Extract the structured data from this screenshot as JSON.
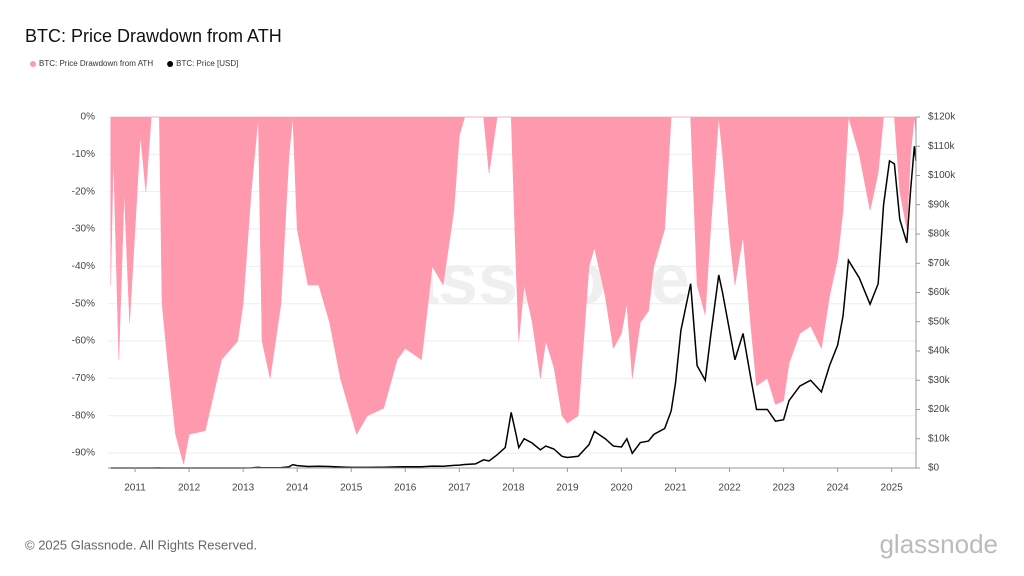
{
  "chart_data": {
    "type": "area-line",
    "title": "BTC: Price Drawdown from ATH",
    "series": [
      {
        "name": "BTC: Price Drawdown from ATH",
        "color": "#ff9aae",
        "type": "area",
        "axis": "y",
        "values": [
          -45,
          -10,
          -65,
          -20,
          -55,
          -30,
          -5,
          -20,
          0,
          0,
          -50,
          -65,
          -85,
          -93,
          -85,
          -84,
          -65,
          -60,
          -50,
          -20,
          0,
          -60,
          -70,
          -50,
          -10,
          0,
          -30,
          -45,
          -45,
          -55,
          -70,
          -80,
          -85,
          -80,
          -78,
          -65,
          -62,
          -65,
          -40,
          -45,
          -25,
          -5,
          0,
          0,
          0,
          -15,
          0,
          0,
          0,
          -40,
          -60,
          -45,
          -55,
          -70,
          -60,
          -67,
          -80,
          -82,
          -80,
          -40,
          -35,
          -48,
          -62,
          -58,
          -50,
          -70,
          -55,
          -52,
          -40,
          -30,
          0,
          0,
          0,
          0,
          -45,
          -53,
          -30,
          0,
          -10,
          -32,
          -45,
          -32,
          -57,
          -72,
          -70,
          -77,
          -76,
          -66,
          -58,
          -56,
          -62,
          -48,
          -38,
          -25,
          0,
          -10,
          -25,
          -15,
          0,
          0,
          0,
          -20,
          -30,
          -10,
          0,
          -5
        ]
      },
      {
        "name": "BTC: Price [USD]",
        "color": "#000000",
        "type": "line",
        "axis": "y2",
        "values": [
          0.06,
          0.07,
          0.1,
          0.2,
          0.3,
          0.3,
          1,
          0.8,
          8,
          30,
          15,
          10,
          3,
          2.5,
          6,
          5,
          10,
          13,
          14,
          30,
          230,
          100,
          70,
          120,
          400,
          1150,
          800,
          500,
          600,
          500,
          350,
          220,
          200,
          230,
          250,
          400,
          430,
          420,
          650,
          610,
          900,
          1000,
          1200,
          1400,
          2800,
          2400,
          4500,
          7000,
          19000,
          11500,
          7000,
          10000,
          8500,
          6200,
          7500,
          6500,
          4000,
          3600,
          4000,
          8000,
          12500,
          10000,
          7500,
          7200,
          10000,
          5000,
          8700,
          9200,
          11500,
          13500,
          19500,
          29000,
          47000,
          63000,
          35000,
          30000,
          45000,
          66000,
          60000,
          47000,
          37000,
          46000,
          30000,
          20000,
          20000,
          16000,
          16500,
          23000,
          28000,
          30000,
          26000,
          35000,
          42000,
          52000,
          71000,
          65000,
          56000,
          63000,
          90000,
          105000,
          104000,
          85000,
          77000,
          95000,
          110000,
          105000
        ]
      }
    ],
    "x": [
      2010.55,
      2010.6,
      2010.7,
      2010.8,
      2010.9,
      2011.0,
      2011.1,
      2011.2,
      2011.3,
      2011.45,
      2011.5,
      2011.6,
      2011.75,
      2011.9,
      2012.0,
      2012.3,
      2012.6,
      2012.9,
      2013.0,
      2013.15,
      2013.28,
      2013.35,
      2013.5,
      2013.7,
      2013.85,
      2013.92,
      2014.0,
      2014.2,
      2014.4,
      2014.6,
      2014.8,
      2015.0,
      2015.1,
      2015.3,
      2015.6,
      2015.85,
      2016.0,
      2016.3,
      2016.5,
      2016.7,
      2016.9,
      2017.0,
      2017.1,
      2017.3,
      2017.45,
      2017.55,
      2017.7,
      2017.85,
      2017.96,
      2018.05,
      2018.1,
      2018.2,
      2018.35,
      2018.5,
      2018.6,
      2018.75,
      2018.9,
      2019.0,
      2019.2,
      2019.4,
      2019.5,
      2019.7,
      2019.85,
      2020.0,
      2020.1,
      2020.2,
      2020.35,
      2020.5,
      2020.6,
      2020.8,
      2020.92,
      2021.0,
      2021.1,
      2021.28,
      2021.4,
      2021.55,
      2021.65,
      2021.8,
      2021.87,
      2022.0,
      2022.1,
      2022.25,
      2022.4,
      2022.5,
      2022.7,
      2022.85,
      2023.0,
      2023.1,
      2023.3,
      2023.5,
      2023.7,
      2023.85,
      2024.0,
      2024.1,
      2024.2,
      2024.4,
      2024.6,
      2024.75,
      2024.85,
      2024.96,
      2025.05,
      2025.15,
      2025.28,
      2025.35,
      2025.42,
      2025.45
    ],
    "xlim": [
      2010.5,
      2025.45
    ],
    "xticks": [
      2011,
      2012,
      2013,
      2014,
      2015,
      2016,
      2017,
      2018,
      2019,
      2020,
      2021,
      2022,
      2023,
      2024,
      2025
    ],
    "ylim": [
      -94,
      0
    ],
    "yticks": [
      {
        "value": 0,
        "label": "0%"
      },
      {
        "value": -10,
        "label": "-10%"
      },
      {
        "value": -20,
        "label": "-20%"
      },
      {
        "value": -30,
        "label": "-30%"
      },
      {
        "value": -40,
        "label": "-40%"
      },
      {
        "value": -50,
        "label": "-50%"
      },
      {
        "value": -60,
        "label": "-60%"
      },
      {
        "value": -70,
        "label": "-70%"
      },
      {
        "value": -80,
        "label": "-80%"
      },
      {
        "value": -90,
        "label": "-90%"
      }
    ],
    "y2lim": [
      0,
      120000
    ],
    "y2ticks": [
      {
        "value": 0,
        "label": "$0"
      },
      {
        "value": 10000,
        "label": "$10k"
      },
      {
        "value": 20000,
        "label": "$20k"
      },
      {
        "value": 30000,
        "label": "$30k"
      },
      {
        "value": 40000,
        "label": "$40k"
      },
      {
        "value": 50000,
        "label": "$50k"
      },
      {
        "value": 60000,
        "label": "$60k"
      },
      {
        "value": 70000,
        "label": "$70k"
      },
      {
        "value": 80000,
        "label": "$80k"
      },
      {
        "value": 90000,
        "label": "$90k"
      },
      {
        "value": 100000,
        "label": "$100k"
      },
      {
        "value": 110000,
        "label": "$110k"
      },
      {
        "value": 120000,
        "label": "$120k"
      }
    ],
    "grid": true,
    "legend": "top-left"
  },
  "watermark": "glassnode",
  "footer": "© 2025 Glassnode. All Rights Reserved.",
  "logo": "glassnode"
}
